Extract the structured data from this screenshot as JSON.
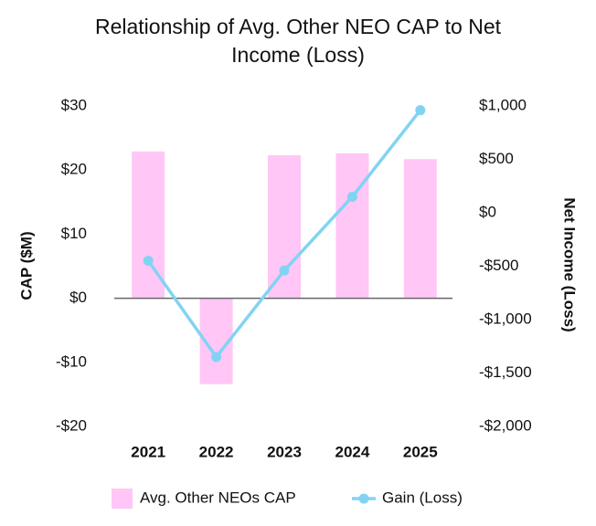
{
  "chart_data": {
    "type": "bar",
    "title": "Relationship of Avg. Other NEO CAP to Net Income (Loss)",
    "y_label": "CAP ($M)",
    "y2_label": "Net Income (Loss)",
    "categories": [
      "2021",
      "2022",
      "2023",
      "2024",
      "2025"
    ],
    "series": [
      {
        "name": "Avg. Other NEOs CAP",
        "type": "bar",
        "color": "#ffc6f6",
        "values": [
          22.9,
          -13.4,
          22.3,
          22.6,
          21.7
        ]
      },
      {
        "name": "Gain (Loss)",
        "type": "line",
        "axis": "y2",
        "color": "#82d3f3",
        "values": [
          -450,
          -1350,
          -540,
          150,
          960
        ]
      }
    ],
    "ylim": [
      -20,
      30
    ],
    "yticks": [
      {
        "value": -20,
        "label": "-$20"
      },
      {
        "value": -10,
        "label": "-$10"
      },
      {
        "value": 0,
        "label": "$0"
      },
      {
        "value": 10,
        "label": "$10"
      },
      {
        "value": 20,
        "label": "$20"
      },
      {
        "value": 30,
        "label": "$30"
      }
    ],
    "y2lim": [
      -2000,
      1000
    ],
    "y2ticks": [
      {
        "value": -2000,
        "label": "-$2,000"
      },
      {
        "value": -1500,
        "label": "-$1,500"
      },
      {
        "value": -1000,
        "label": "-$1,000"
      },
      {
        "value": -500,
        "label": "-$500"
      },
      {
        "value": 0,
        "label": "$0"
      },
      {
        "value": 500,
        "label": "$500"
      },
      {
        "value": 1000,
        "label": "$1,000"
      }
    ],
    "grid": false,
    "legend": "bottom"
  }
}
